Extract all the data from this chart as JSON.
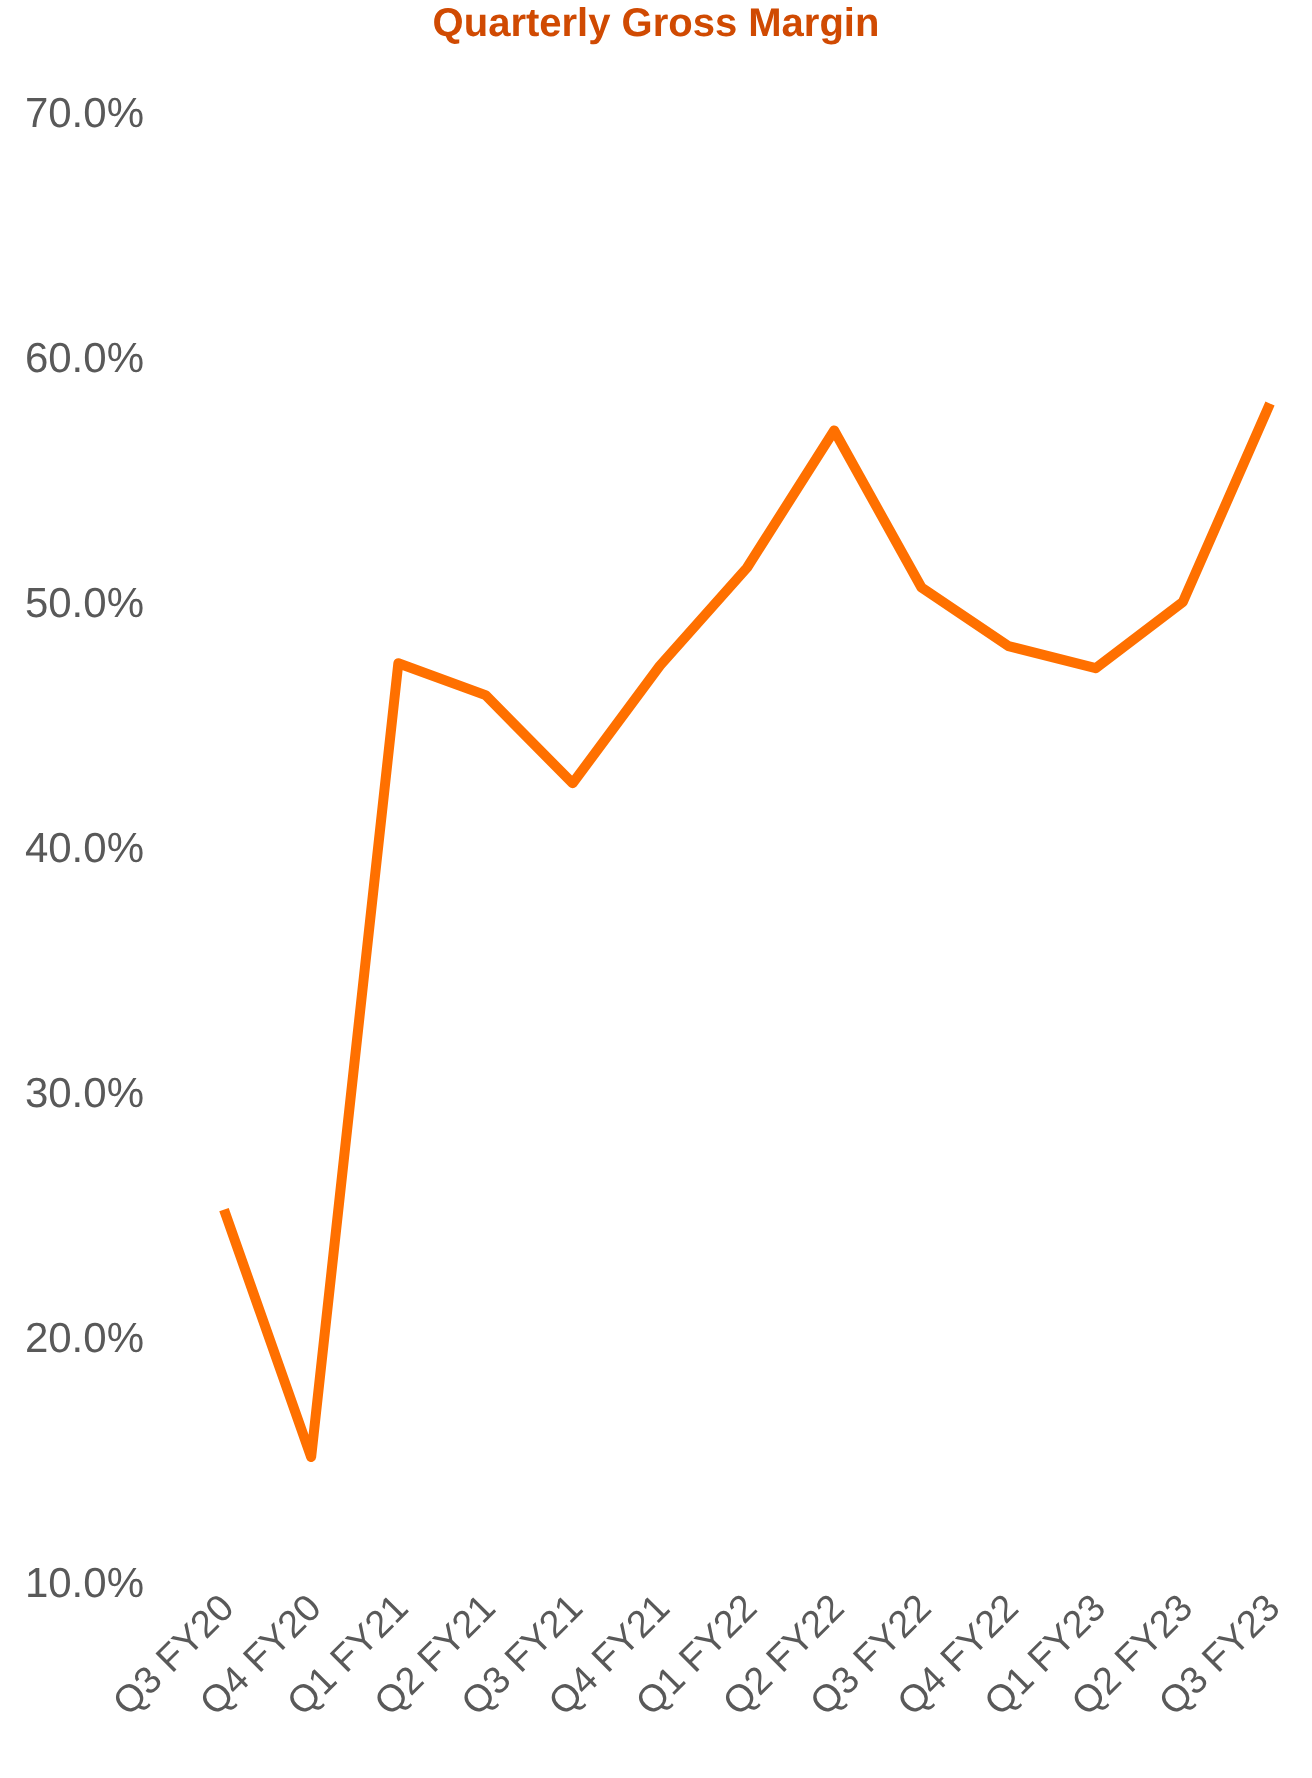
{
  "chart_data": {
    "type": "line",
    "title": "Quarterly Gross Margin",
    "categories": [
      "Q3 FY20",
      "Q4 FY20",
      "Q1 FY21",
      "Q2 FY21",
      "Q3 FY21",
      "Q4 FY21",
      "Q1 FY22",
      "Q2 FY22",
      "Q3 FY22",
      "Q4 FY22",
      "Q1 FY23",
      "Q2 FY23",
      "Q3 FY23"
    ],
    "series": [
      {
        "color": "#ff7000",
        "values": [
          25.2,
          15.1,
          47.5,
          46.2,
          42.6,
          47.4,
          51.4,
          57.0,
          50.6,
          48.2,
          47.3,
          50.0,
          58.1
        ]
      }
    ],
    "ylim": [
      10,
      70
    ],
    "yticks": [
      {
        "value": 10,
        "label": "10.0%"
      },
      {
        "value": 20,
        "label": "20.0%"
      },
      {
        "value": 30,
        "label": "30.0%"
      },
      {
        "value": 40,
        "label": "40.0%"
      },
      {
        "value": 50,
        "label": "50.0%"
      },
      {
        "value": 60,
        "label": "60.0%"
      },
      {
        "value": 70,
        "label": "70.0%"
      }
    ],
    "grid": false,
    "legend": false,
    "marker": "none",
    "line_style": "solid"
  }
}
